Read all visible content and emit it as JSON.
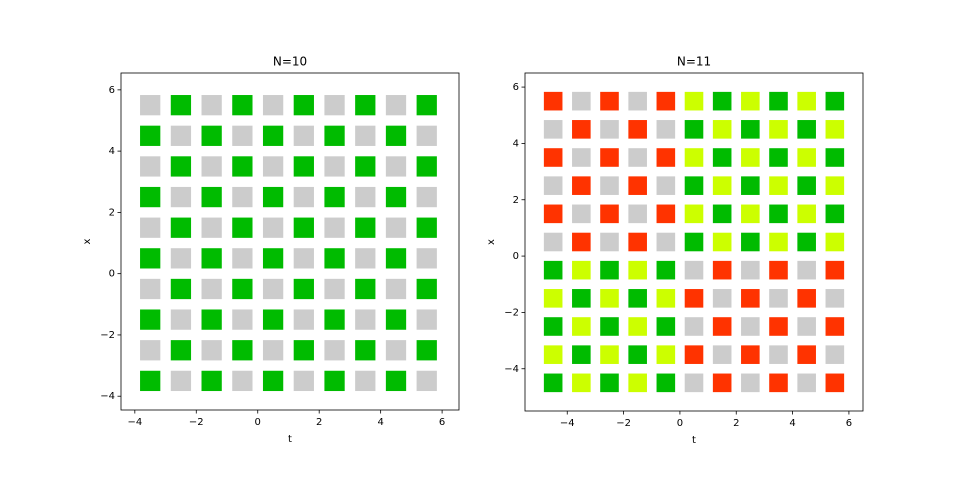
{
  "chart_data": [
    {
      "type": "grid",
      "title": "N=10",
      "xlabel": "t",
      "ylabel": "x",
      "x": [
        -3.5,
        -2.5,
        -1.5,
        -0.5,
        0.5,
        1.5,
        2.5,
        3.5,
        4.5,
        5.5
      ],
      "y": [
        5.5,
        4.5,
        3.5,
        2.5,
        1.5,
        0.5,
        -0.5,
        -1.5,
        -2.5,
        -3.5
      ],
      "cells": [
        [
          "#ccc",
          "#0b0",
          "#ccc",
          "#0b0",
          "#ccc",
          "#0b0",
          "#ccc",
          "#0b0",
          "#ccc",
          "#0b0"
        ],
        [
          "#0b0",
          "#ccc",
          "#0b0",
          "#ccc",
          "#0b0",
          "#ccc",
          "#0b0",
          "#ccc",
          "#0b0",
          "#ccc"
        ],
        [
          "#ccc",
          "#0b0",
          "#ccc",
          "#0b0",
          "#ccc",
          "#0b0",
          "#ccc",
          "#0b0",
          "#ccc",
          "#0b0"
        ],
        [
          "#0b0",
          "#ccc",
          "#0b0",
          "#ccc",
          "#0b0",
          "#ccc",
          "#0b0",
          "#ccc",
          "#0b0",
          "#ccc"
        ],
        [
          "#ccc",
          "#0b0",
          "#ccc",
          "#0b0",
          "#ccc",
          "#0b0",
          "#ccc",
          "#0b0",
          "#ccc",
          "#0b0"
        ],
        [
          "#0b0",
          "#ccc",
          "#0b0",
          "#ccc",
          "#0b0",
          "#ccc",
          "#0b0",
          "#ccc",
          "#0b0",
          "#ccc"
        ],
        [
          "#ccc",
          "#0b0",
          "#ccc",
          "#0b0",
          "#ccc",
          "#0b0",
          "#ccc",
          "#0b0",
          "#ccc",
          "#0b0"
        ],
        [
          "#0b0",
          "#ccc",
          "#0b0",
          "#ccc",
          "#0b0",
          "#ccc",
          "#0b0",
          "#ccc",
          "#0b0",
          "#ccc"
        ],
        [
          "#ccc",
          "#0b0",
          "#ccc",
          "#0b0",
          "#ccc",
          "#0b0",
          "#ccc",
          "#0b0",
          "#ccc",
          "#0b0"
        ],
        [
          "#0b0",
          "#ccc",
          "#0b0",
          "#ccc",
          "#0b0",
          "#ccc",
          "#0b0",
          "#ccc",
          "#0b0",
          "#ccc"
        ]
      ],
      "xlim": [
        -4.45,
        6.55
      ],
      "ylim": [
        -4.45,
        6.55
      ],
      "xticks": [
        {
          "value": -4,
          "label": "−4"
        },
        {
          "value": -2,
          "label": "−2"
        },
        0,
        2,
        4,
        6
      ],
      "yticks": [
        {
          "value": -4,
          "label": "−4"
        },
        {
          "value": -2,
          "label": "−2"
        },
        0,
        2,
        4,
        6
      ]
    },
    {
      "type": "grid",
      "title": "N=11",
      "xlabel": "t",
      "ylabel": "x",
      "x": [
        -4.5,
        -3.5,
        -2.5,
        -1.5,
        -0.5,
        0.5,
        1.5,
        2.5,
        3.5,
        4.5,
        5.5
      ],
      "y": [
        5.5,
        4.5,
        3.5,
        2.5,
        1.5,
        0.5,
        -0.5,
        -1.5,
        -2.5,
        -3.5,
        -4.5
      ],
      "cells": [
        [
          "#f30",
          "#ccc",
          "#f30",
          "#ccc",
          "#f30",
          "#cf0",
          "#0b0",
          "#cf0",
          "#0b0",
          "#cf0",
          "#0b0"
        ],
        [
          "#ccc",
          "#f30",
          "#ccc",
          "#f30",
          "#ccc",
          "#0b0",
          "#cf0",
          "#0b0",
          "#cf0",
          "#0b0",
          "#cf0"
        ],
        [
          "#f30",
          "#ccc",
          "#f30",
          "#ccc",
          "#f30",
          "#cf0",
          "#0b0",
          "#cf0",
          "#0b0",
          "#cf0",
          "#0b0"
        ],
        [
          "#ccc",
          "#f30",
          "#ccc",
          "#f30",
          "#ccc",
          "#0b0",
          "#cf0",
          "#0b0",
          "#cf0",
          "#0b0",
          "#cf0"
        ],
        [
          "#f30",
          "#ccc",
          "#f30",
          "#ccc",
          "#f30",
          "#cf0",
          "#0b0",
          "#cf0",
          "#0b0",
          "#cf0",
          "#0b0"
        ],
        [
          "#ccc",
          "#f30",
          "#ccc",
          "#f30",
          "#ccc",
          "#0b0",
          "#cf0",
          "#0b0",
          "#cf0",
          "#0b0",
          "#cf0"
        ],
        [
          "#0b0",
          "#cf0",
          "#0b0",
          "#cf0",
          "#0b0",
          "#ccc",
          "#f30",
          "#ccc",
          "#f30",
          "#ccc",
          "#f30"
        ],
        [
          "#cf0",
          "#0b0",
          "#cf0",
          "#0b0",
          "#cf0",
          "#f30",
          "#ccc",
          "#f30",
          "#ccc",
          "#f30",
          "#ccc"
        ],
        [
          "#0b0",
          "#cf0",
          "#0b0",
          "#cf0",
          "#0b0",
          "#ccc",
          "#f30",
          "#ccc",
          "#f30",
          "#ccc",
          "#f30"
        ],
        [
          "#cf0",
          "#0b0",
          "#cf0",
          "#0b0",
          "#cf0",
          "#f30",
          "#ccc",
          "#f30",
          "#ccc",
          "#f30",
          "#ccc"
        ],
        [
          "#0b0",
          "#cf0",
          "#0b0",
          "#cf0",
          "#0b0",
          "#ccc",
          "#f30",
          "#ccc",
          "#f30",
          "#ccc",
          "#f30"
        ]
      ],
      "xlim": [
        -5.5,
        6.5
      ],
      "ylim": [
        -5.5,
        6.5
      ],
      "xticks": [
        {
          "value": -4,
          "label": "−4"
        },
        {
          "value": -2,
          "label": "−2"
        },
        0,
        2,
        4,
        6
      ],
      "yticks": [
        {
          "value": -4,
          "label": "−4"
        },
        {
          "value": -2,
          "label": "−2"
        },
        0,
        2,
        4,
        6
      ]
    }
  ]
}
